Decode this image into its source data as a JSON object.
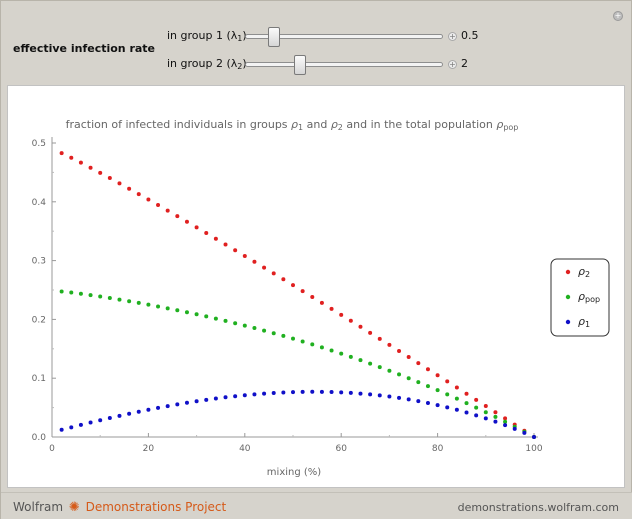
{
  "controls": {
    "group_title": "effective infection rate",
    "lambda1": {
      "label": "in group 1 (",
      "symbol": "λ",
      "sub": "1",
      "close": ")",
      "value": "0.5",
      "fraction": 0.12
    },
    "lambda2": {
      "label": "in group 2 (",
      "symbol": "λ",
      "sub": "2",
      "close": ")",
      "value": "2",
      "fraction": 0.26
    }
  },
  "chart_data": {
    "type": "scatter",
    "title": {
      "pre": "fraction of infected individuals in groups ",
      "r1": "ρ",
      "r1sub": "1",
      "mid": " and ",
      "r2": "ρ",
      "r2sub": "2",
      "post": " and in the total population ",
      "rp": "ρ",
      "rpsub": "pop"
    },
    "xlabel": "mixing (%)",
    "ylabel": "",
    "xlim": [
      0,
      100
    ],
    "ylim": [
      0,
      0.5
    ],
    "xticks": [
      0,
      20,
      40,
      60,
      80,
      100
    ],
    "yticks": [
      "0.0",
      "0.1",
      "0.2",
      "0.3",
      "0.4",
      "0.5"
    ],
    "legend_position": "right",
    "series": [
      {
        "name": "ρ",
        "sub": "2",
        "color": "#e02020",
        "key": "rho2"
      },
      {
        "name": "ρ",
        "sub": "pop",
        "color": "#20b020",
        "key": "rhopop"
      },
      {
        "name": "ρ",
        "sub": "1",
        "color": "#1010c8",
        "key": "rho1"
      }
    ],
    "x_range": {
      "start": 2,
      "end": 100,
      "step": 2
    },
    "colors": {
      "rho2": "#e02020",
      "rhopop": "#20b020",
      "rho1": "#1010c8"
    }
  },
  "footer": {
    "brand_pre": "Wolfram",
    "brand_gear": "✺",
    "brand_post": "Demonstrations Project",
    "site": "demonstrations.wolfram.com"
  }
}
